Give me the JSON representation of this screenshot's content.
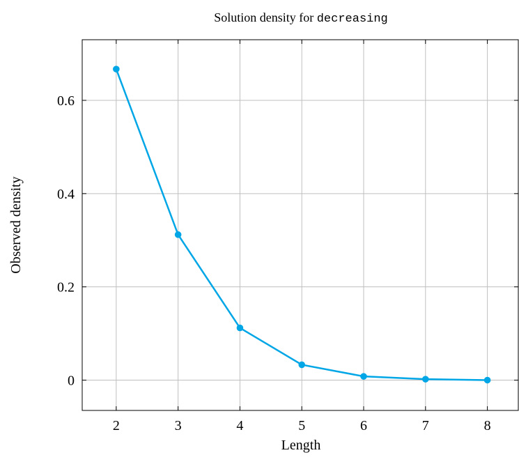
{
  "chart_data": {
    "type": "line",
    "title": {
      "prefix": "Solution density for ",
      "code": "decreasing"
    },
    "xlabel": "Length",
    "ylabel": "Observed density",
    "x": [
      2,
      3,
      4,
      5,
      6,
      7,
      8
    ],
    "series": [
      {
        "values": [
          0.667,
          0.312,
          0.112,
          0.033,
          0.008,
          0.002,
          0.0
        ]
      }
    ],
    "xlim": [
      1.45,
      8.5
    ],
    "ylim": [
      -0.065,
      0.73
    ],
    "xticks": [
      2,
      3,
      4,
      5,
      6,
      7,
      8
    ],
    "yticks": [
      0,
      0.2,
      0.4,
      0.6
    ],
    "ytick_labels": [
      "0",
      "0.2",
      "0.4",
      "0.6"
    ],
    "grid": true,
    "colors": {
      "line": "#00a6e6",
      "marker": "#00a6e6",
      "grid": "#bfbfbf",
      "axis": "#000000"
    }
  }
}
